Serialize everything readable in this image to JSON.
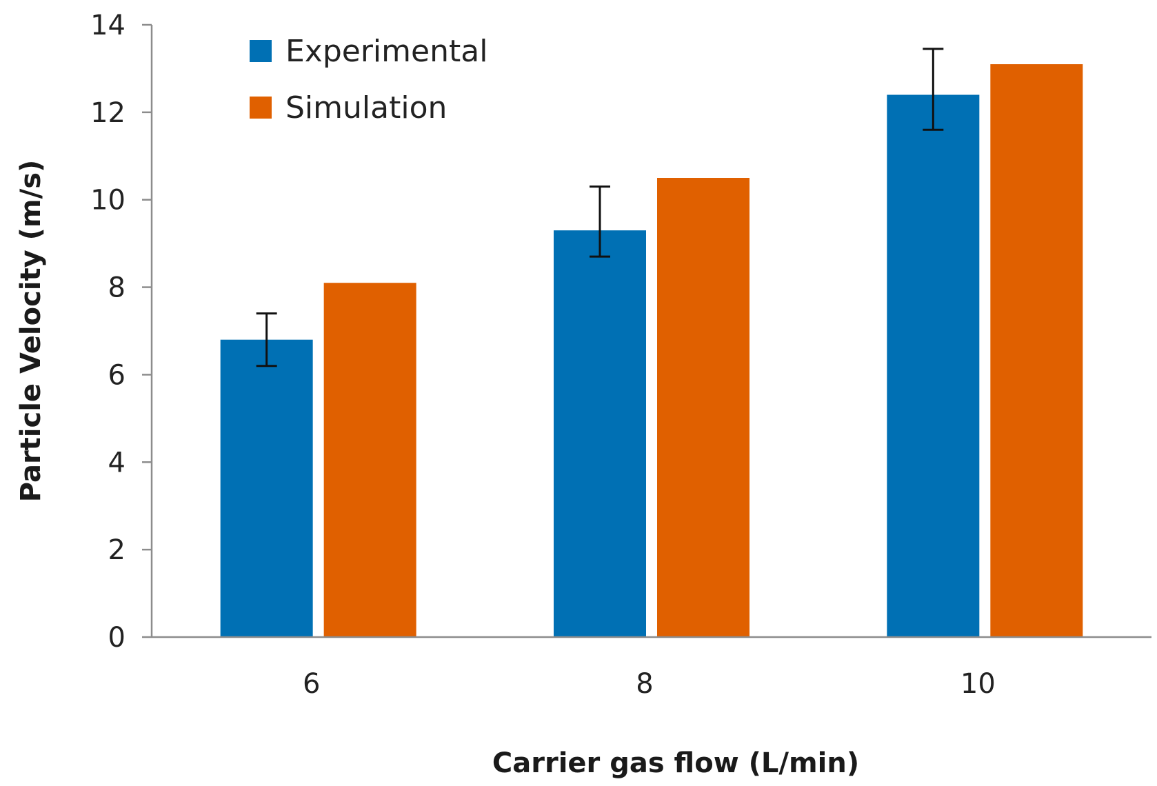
{
  "chart_data": {
    "type": "bar",
    "title": "",
    "xlabel": "Carrier gas flow (L/min)",
    "ylabel": "Particle Velocity (m/s)",
    "categories": [
      "6",
      "8",
      "10"
    ],
    "ylim": [
      0,
      14
    ],
    "yticks": [
      0,
      2,
      4,
      6,
      8,
      10,
      12,
      14
    ],
    "grid": false,
    "legend_position": "top-left",
    "series": [
      {
        "name": "Experimental",
        "color": "#0070b4",
        "values": [
          6.8,
          9.3,
          12.4
        ],
        "error_low": [
          6.2,
          8.7,
          11.6
        ],
        "error_high": [
          7.4,
          10.3,
          13.45
        ]
      },
      {
        "name": "Simulation",
        "color": "#e06000",
        "values": [
          8.1,
          10.5,
          13.1
        ]
      }
    ]
  }
}
